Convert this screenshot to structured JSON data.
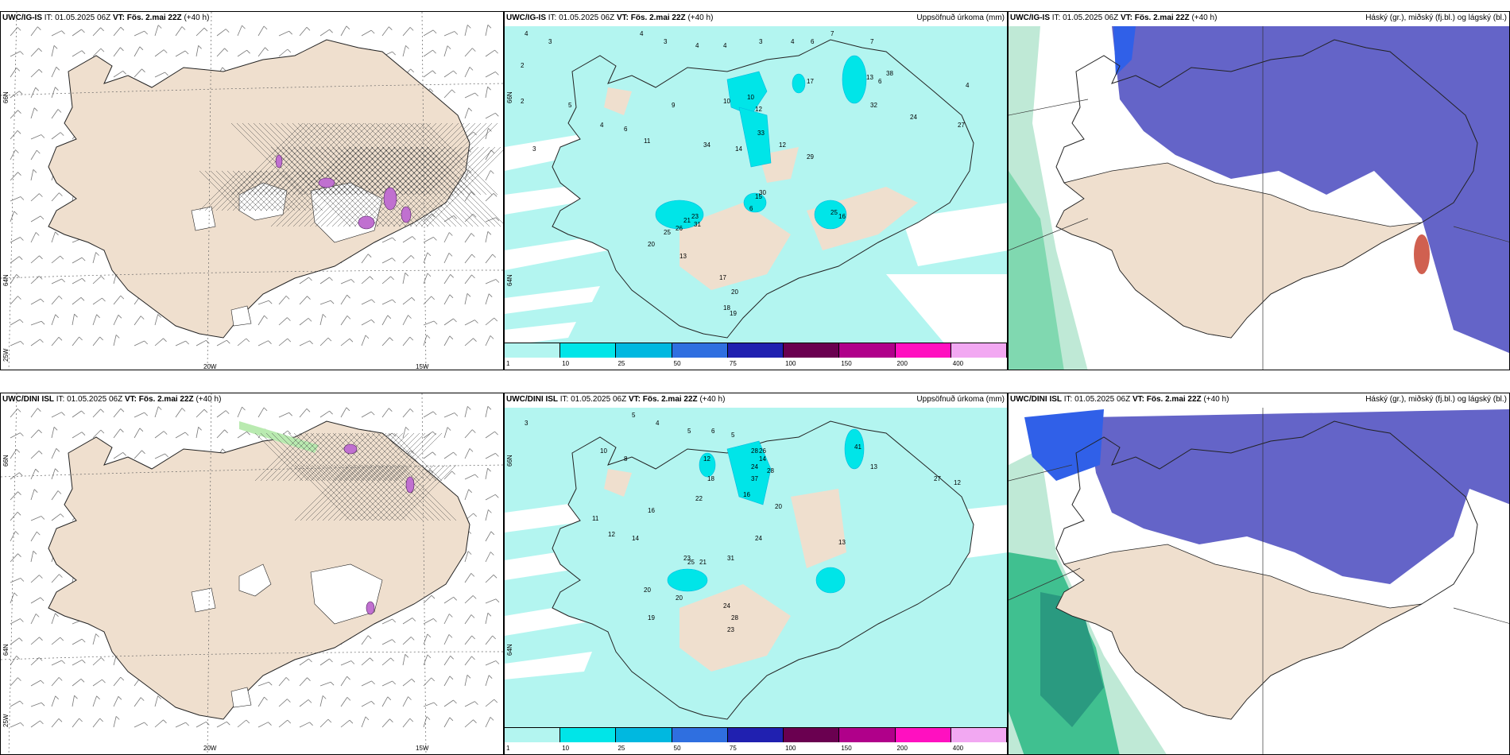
{
  "panels": {
    "top_left": {
      "model": "UWC/IG-IS",
      "it": "IT: 01.05.2025 06Z",
      "vt": "VT: Fös. 2.mai 22Z",
      "lead": "(+40 h)",
      "right": ""
    },
    "top_mid": {
      "model": "UWC/IG-IS",
      "it": "IT: 01.05.2025 06Z",
      "vt": "VT: Fös. 2.mai 22Z",
      "lead": "(+40 h)",
      "right": "Uppsöfnuð úrkoma (mm)"
    },
    "top_right": {
      "model": "UWC/IG-IS",
      "it": "IT: 01.05.2025 06Z",
      "vt": "VT: Fös. 2.mai 22Z",
      "lead": "(+40 h)",
      "right": "Háský (gr.), miðský (fj.bl.) og lágský (bl.)"
    },
    "bot_left": {
      "model": "UWC/DINI ISL",
      "it": "IT: 01.05.2025 06Z",
      "vt": "VT: Fös. 2.mai 22Z",
      "lead": "(+40 h)",
      "right": ""
    },
    "bot_mid": {
      "model": "UWC/DINI ISL",
      "it": "IT: 01.05.2025 06Z",
      "vt": "VT: Fös. 2.mai 22Z",
      "lead": "(+40 h)",
      "right": "Uppsöfnuð úrkoma (mm)"
    },
    "bot_right": {
      "model": "UWC/DINI ISL",
      "it": "IT: 01.05.2025 06Z",
      "vt": "VT: Fös. 2.mai 22Z",
      "lead": "(+40 h)",
      "right": "Háský (gr.), miðský (fj.bl.) og lágský (bl.)"
    }
  },
  "axis_labels": {
    "lat66": "66N",
    "lat64": "64N",
    "lon25": "25W",
    "lon20": "20W",
    "lon15": "15W"
  },
  "colorbar": {
    "ticks": [
      "1",
      "10",
      "25",
      "50",
      "75",
      "100",
      "150",
      "200",
      "400"
    ],
    "colors": [
      "#b3f5f0",
      "#00e5e8",
      "#00b8e0",
      "#2f6fe0",
      "#2020b0",
      "#6a0050",
      "#b0008a",
      "#ff10c0",
      "#f2a8f2"
    ]
  },
  "colors": {
    "land": "#efdfce",
    "sea_precip": "#b3f5f0",
    "cloud_mid": "#6464c8",
    "cloud_low": "#3060e8",
    "cloud_high": "#40c090",
    "hatch": "#505050",
    "convective": "#c070d0"
  },
  "precip_numbers_top": [
    "4",
    "3",
    "2",
    "4",
    "3",
    "4",
    "4",
    "3",
    "4",
    "6",
    "7",
    "7",
    "6",
    "4",
    "2",
    "3",
    "5",
    "4",
    "6",
    "11",
    "9",
    "10",
    "10",
    "12",
    "17",
    "13",
    "38",
    "32",
    "24",
    "27",
    "33",
    "12",
    "29",
    "14",
    "34",
    "6",
    "21",
    "23",
    "15",
    "25",
    "16",
    "26",
    "31",
    "30",
    "25",
    "20",
    "13",
    "17",
    "20",
    "18",
    "19"
  ],
  "precip_numbers_bot": [
    "3",
    "5",
    "4",
    "5",
    "6",
    "5",
    "10",
    "8",
    "12",
    "14",
    "28",
    "24",
    "28",
    "16",
    "26",
    "41",
    "13",
    "27",
    "12",
    "37",
    "20",
    "18",
    "22",
    "24",
    "13",
    "23",
    "20",
    "25",
    "21",
    "31",
    "24",
    "28",
    "23",
    "20",
    "19",
    "16",
    "14",
    "12",
    "11"
  ]
}
